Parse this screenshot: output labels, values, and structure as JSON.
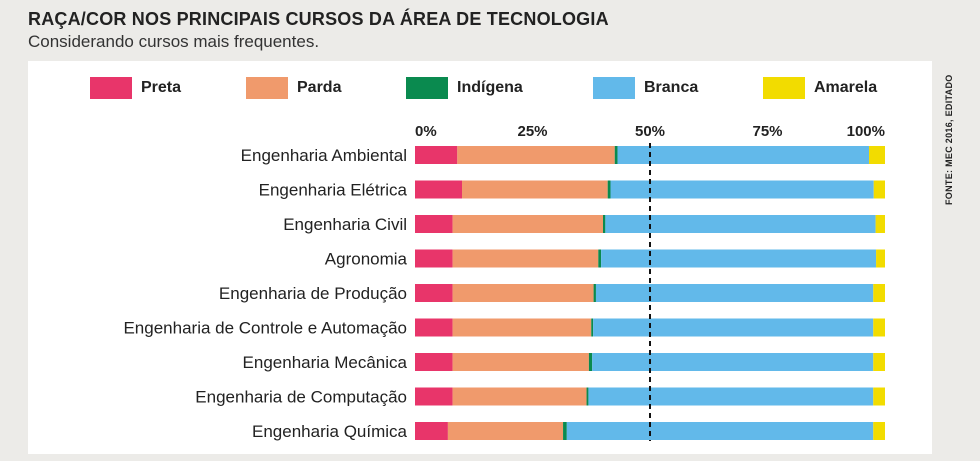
{
  "header": {
    "title": "RAÇA/COR NOS PRINCIPAIS CURSOS DA ÁREA DE TECNOLOGIA",
    "subtitle": "Considerando cursos mais frequentes."
  },
  "source": "FONTE: MEC 2016, EDITADO",
  "chart_data": {
    "type": "bar",
    "orientation": "horizontal",
    "stacked": true,
    "xlim": [
      0,
      100
    ],
    "x_ticks": [
      "0%",
      "25%",
      "50%",
      "75%",
      "100%"
    ],
    "reference_line": 50,
    "legend_position": "top",
    "categories": [
      "Engenharia Ambiental",
      "Engenharia Elétrica",
      "Engenharia Civil",
      "Agronomia",
      "Engenharia de Produção",
      "Engenharia de Controle e Automação",
      "Engenharia Mecânica",
      "Engenharia de Computação",
      "Engenharia Química"
    ],
    "series": [
      {
        "name": "Preta",
        "color": "#e8356a",
        "values": [
          9,
          10,
          8,
          8,
          8,
          8,
          8,
          8,
          7
        ]
      },
      {
        "name": "Parda",
        "color": "#f09a6c",
        "values": [
          33.5,
          31,
          32,
          31,
          30,
          29.5,
          29,
          28.5,
          24.5
        ]
      },
      {
        "name": "Indígena",
        "color": "#0a8a4f",
        "values": [
          0.6,
          0.6,
          0.5,
          0.6,
          0.5,
          0.4,
          0.7,
          0.4,
          0.8
        ]
      },
      {
        "name": "Branca",
        "color": "#62b9ea",
        "values": [
          53.5,
          56,
          57.5,
          58.5,
          59,
          59.6,
          59.8,
          60.6,
          65.2
        ]
      },
      {
        "name": "Amarela",
        "color": "#f2dc00",
        "values": [
          3.4,
          2.4,
          2.0,
          1.9,
          2.5,
          2.5,
          2.5,
          2.5,
          2.5
        ]
      }
    ]
  }
}
